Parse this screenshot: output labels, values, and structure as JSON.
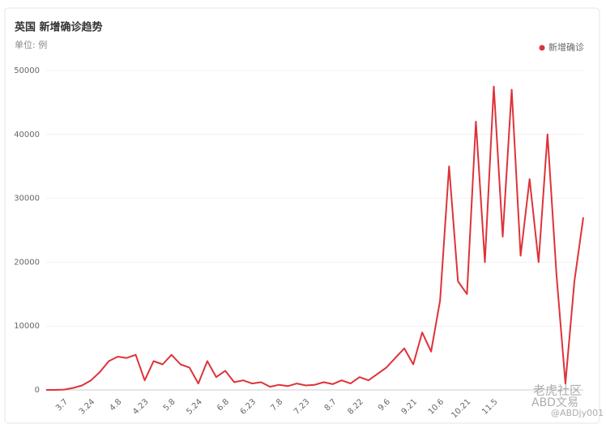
{
  "chart_data": {
    "type": "line",
    "title": "英国 新增确诊趋势",
    "subtitle": "单位: 例",
    "watermark": [
      "老虎社区",
      "ABD文易",
      "@ABDjy001"
    ],
    "categories": [
      null,
      null,
      "3.7",
      null,
      null,
      "3.24",
      null,
      null,
      "4.8",
      null,
      null,
      "4.23",
      null,
      null,
      "5.8",
      null,
      null,
      "5.24",
      null,
      null,
      "6.8",
      null,
      null,
      "6.23",
      null,
      null,
      "7.8",
      null,
      null,
      "7.23",
      null,
      null,
      "8.7",
      null,
      null,
      "8.22",
      null,
      null,
      "9.6",
      null,
      null,
      "9.21",
      null,
      null,
      "10.6",
      null,
      null,
      "10.21",
      null,
      null,
      "11.5",
      null,
      null,
      null,
      null,
      null,
      null,
      null,
      null,
      null,
      null
    ],
    "series": [
      {
        "name": "新增确诊",
        "color": "#dd3339",
        "values": [
          0,
          0,
          50,
          300,
          700,
          1500,
          2800,
          4500,
          5200,
          5000,
          5500,
          1500,
          4500,
          4000,
          5500,
          4000,
          3500,
          1000,
          4500,
          2000,
          3000,
          1200,
          1500,
          1000,
          1200,
          500,
          800,
          600,
          1000,
          700,
          800,
          1200,
          900,
          1500,
          1000,
          2000,
          1500,
          2500,
          3500,
          5000,
          6500,
          4000,
          9000,
          6000,
          14000,
          35000,
          17000,
          15000,
          42000,
          20000,
          47500,
          24000,
          47000,
          21000,
          33000,
          20000,
          40000,
          18000,
          1000,
          17000,
          27000
        ]
      }
    ],
    "ylim": [
      0,
      50000
    ],
    "yticks": [
      0,
      10000,
      20000,
      30000,
      40000,
      50000
    ],
    "grid": true,
    "legend": "top-right"
  }
}
